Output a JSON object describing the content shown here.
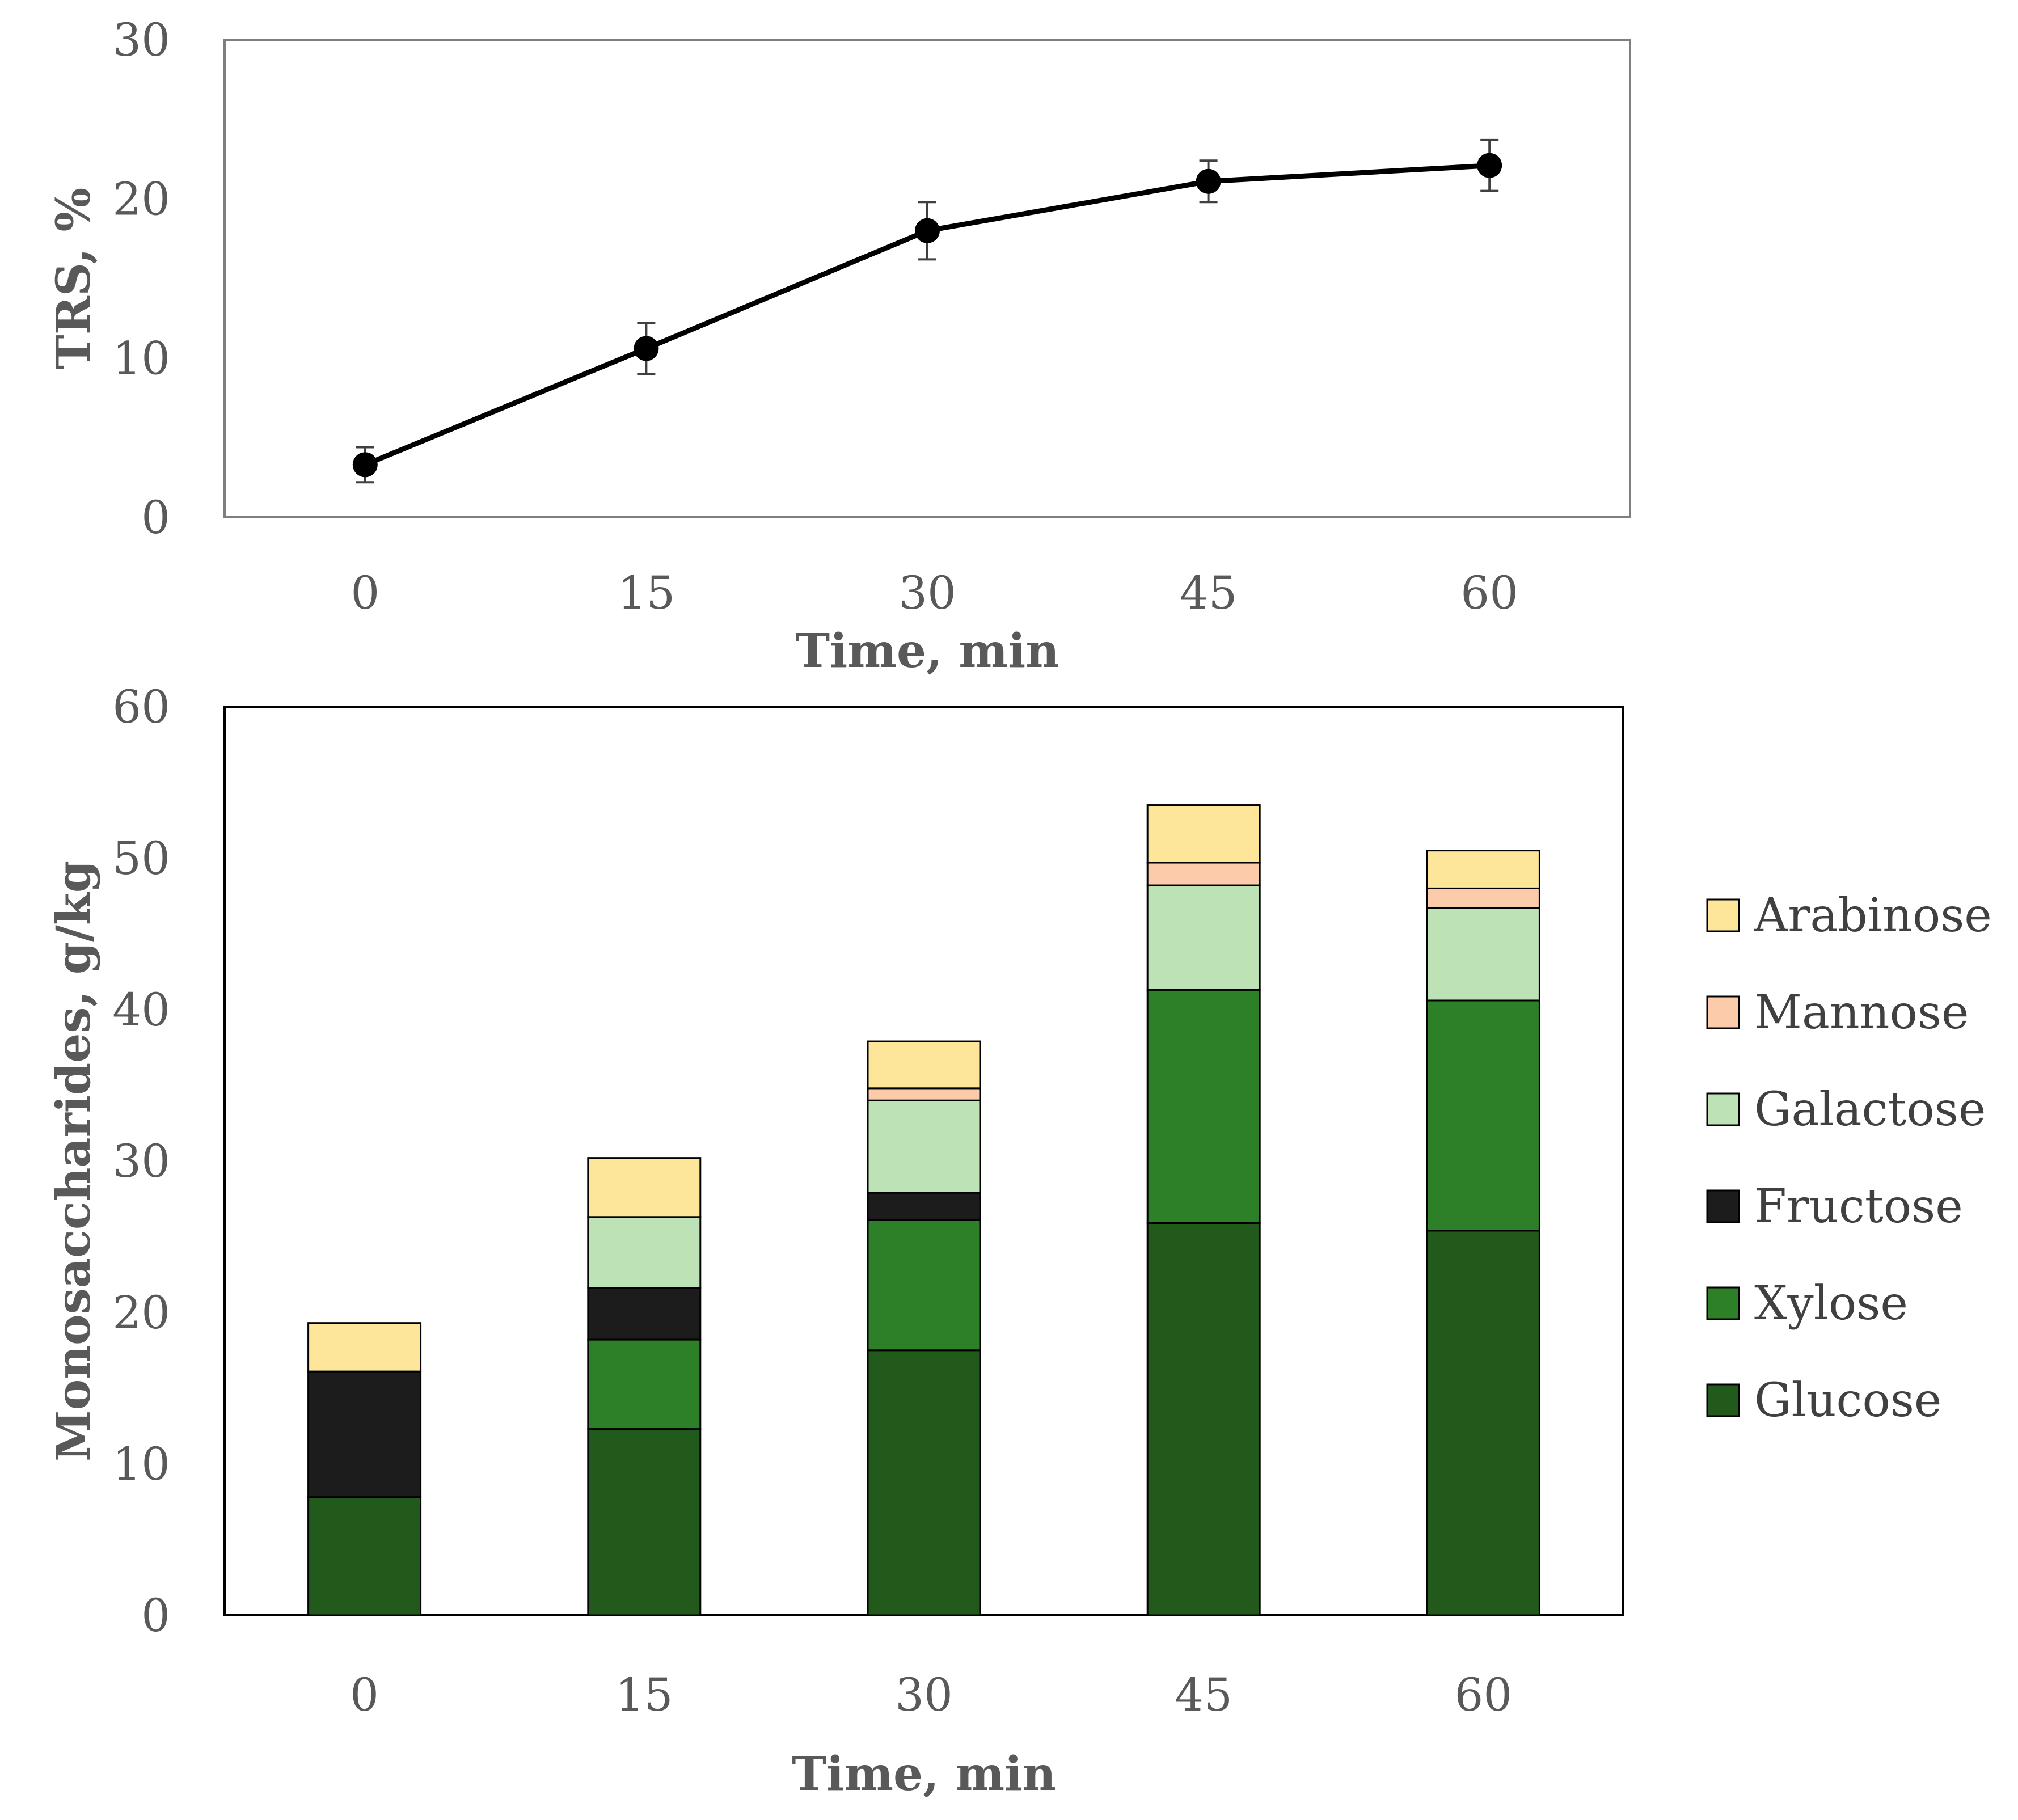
{
  "chart_data": [
    {
      "type": "line",
      "x": [
        0,
        15,
        30,
        45,
        60
      ],
      "series": [
        {
          "name": "TRS",
          "values": [
            3.3,
            10.6,
            18.0,
            21.1,
            22.1
          ],
          "errors": [
            1.1,
            1.6,
            1.8,
            1.3,
            1.6
          ],
          "color": "#000000"
        }
      ],
      "xlabel": "Time, min",
      "ylabel": "TRS, %",
      "xticks": [
        "0",
        "15",
        "30",
        "45",
        "60"
      ],
      "yticks": [
        "0",
        "10",
        "20",
        "30"
      ],
      "ylim": [
        0,
        30
      ],
      "grid": false
    },
    {
      "type": "bar",
      "stacked": true,
      "categories": [
        "0",
        "15",
        "30",
        "45",
        "60"
      ],
      "series": [
        {
          "name": "Glucose",
          "color": "#215A1B",
          "values": [
            7.8,
            12.3,
            17.5,
            25.9,
            25.4
          ]
        },
        {
          "name": "Xylose",
          "color": "#2E8028",
          "values": [
            0,
            5.9,
            8.6,
            15.4,
            15.2
          ]
        },
        {
          "name": "Fructose",
          "color": "#1C1C1C",
          "values": [
            8.3,
            3.4,
            1.8,
            0,
            0
          ]
        },
        {
          "name": "Galactose",
          "color": "#BCE2B5",
          "values": [
            0,
            4.7,
            6.1,
            6.9,
            6.1
          ]
        },
        {
          "name": "Mannose",
          "color": "#FBCBAA",
          "values": [
            0,
            0,
            0.8,
            1.5,
            1.3
          ]
        },
        {
          "name": "Arabinose",
          "color": "#FDE699",
          "values": [
            3.2,
            3.9,
            3.1,
            3.8,
            2.5
          ]
        }
      ],
      "xlabel": "Time, min",
      "ylabel": "Monosaccharides, g/kg",
      "yticks": [
        "0",
        "10",
        "20",
        "30",
        "40",
        "50",
        "60"
      ],
      "ylim": [
        0,
        60
      ],
      "legend": "right",
      "legend_order": [
        "Arabinose",
        "Mannose",
        "Galactose",
        "Fructose",
        "Xylose",
        "Glucose"
      ],
      "grid": false
    }
  ]
}
